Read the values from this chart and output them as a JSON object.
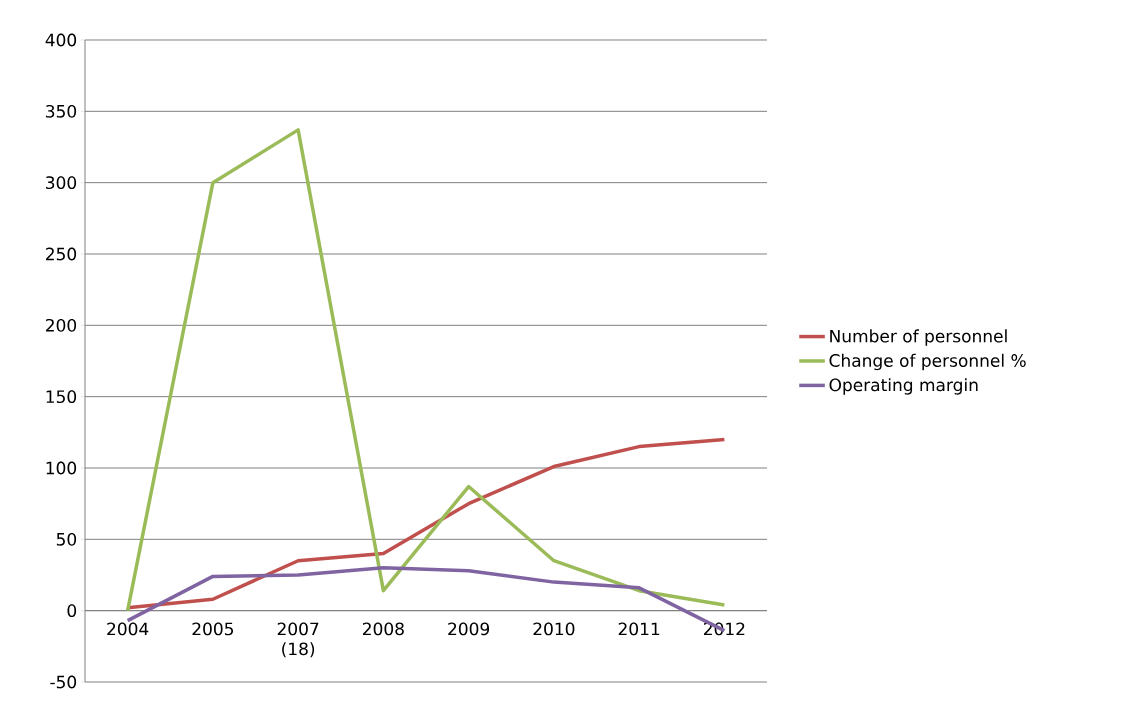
{
  "chart_data": {
    "type": "line",
    "categories": [
      "2004",
      "2005",
      "2007 (18)",
      "2008",
      "2009",
      "2010",
      "2011",
      "2012"
    ],
    "series": [
      {
        "name": "Number of personnel",
        "color": "#c0504d",
        "values": [
          2,
          8,
          35,
          40,
          75,
          101,
          115,
          120
        ]
      },
      {
        "name": "Change of personnel %",
        "color": "#9bbb59",
        "values": [
          0,
          300,
          337,
          14,
          87,
          35,
          14,
          4
        ]
      },
      {
        "name": "Operating margin",
        "color": "#8064a2",
        "values": [
          -7,
          24,
          25,
          30,
          28,
          20,
          16,
          -14
        ]
      }
    ],
    "ylim": [
      -50,
      400
    ],
    "yticks": [
      -50,
      0,
      50,
      100,
      150,
      200,
      250,
      300,
      350,
      400
    ],
    "grid": "y",
    "legend": "right",
    "marker": "none",
    "line_style": "solid"
  }
}
